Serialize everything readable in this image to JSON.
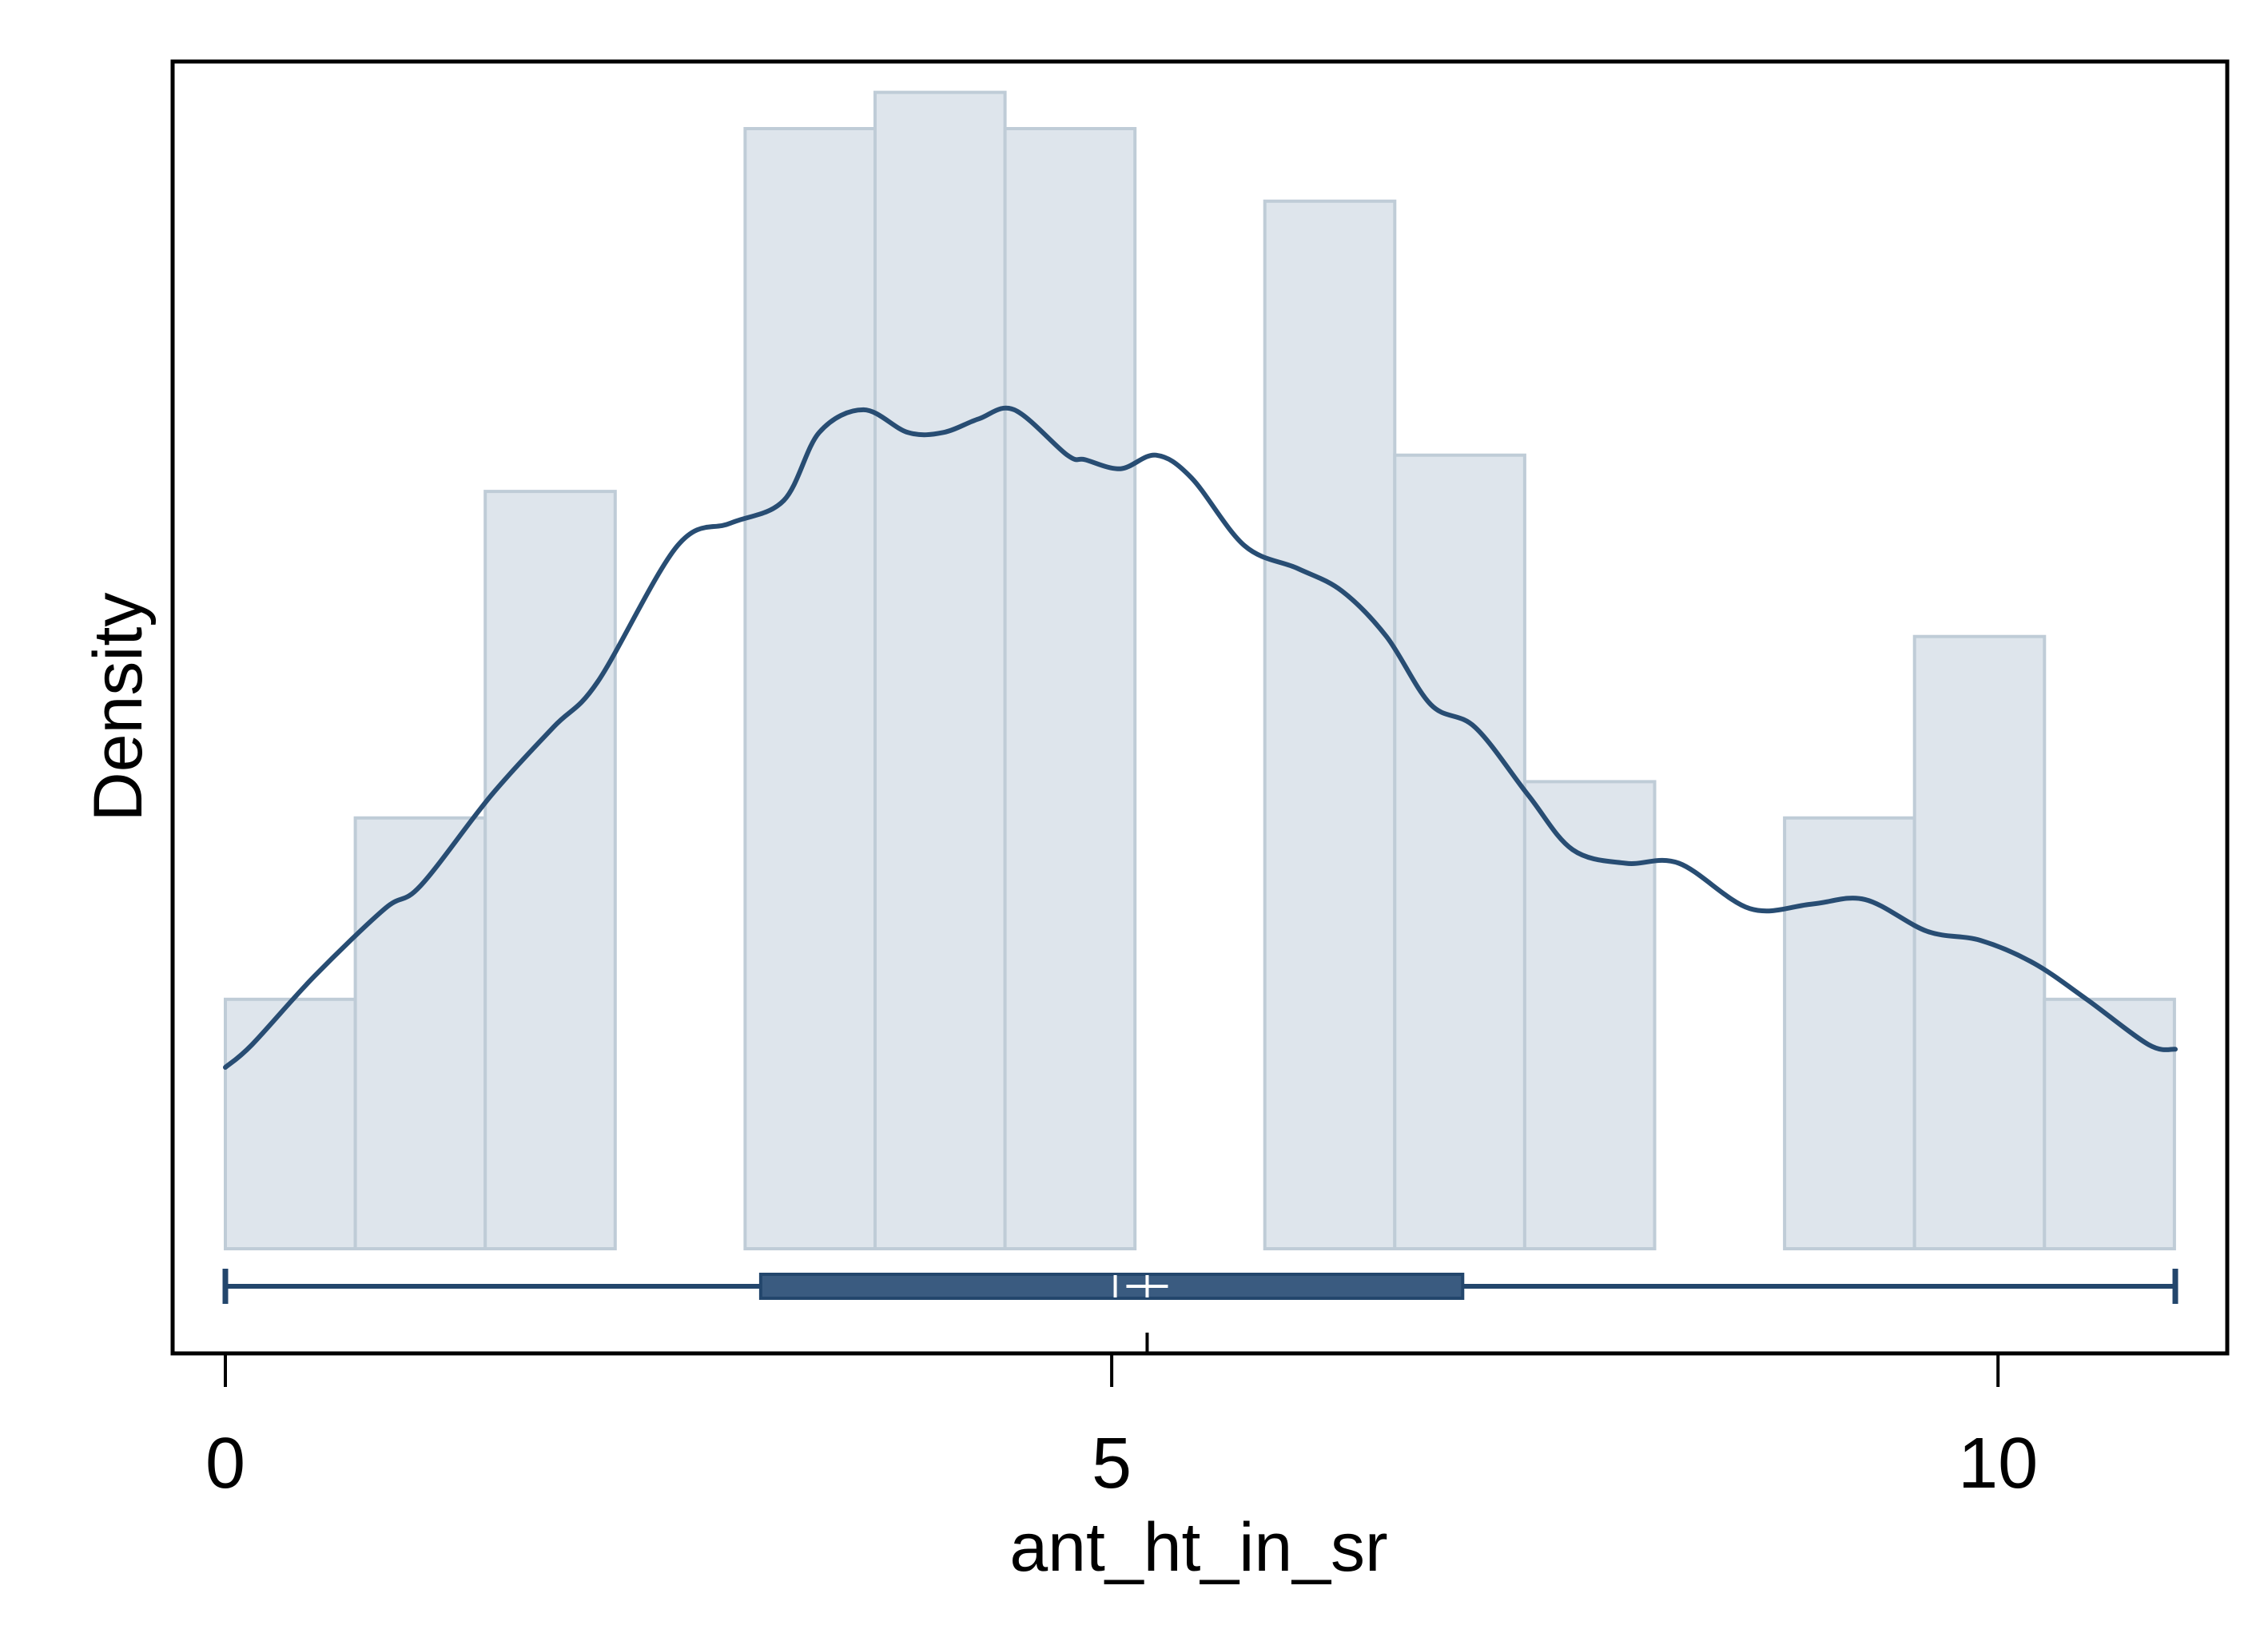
{
  "colors": {
    "background": "#ffffff",
    "bar_fill": "#dee5ec",
    "bar_stroke": "#bfccd7",
    "line": "#284d73",
    "box_fill": "#3a5b80",
    "box_stroke": "#23466c",
    "median_mark": "#ffffff",
    "frame": "#000000"
  },
  "chart_data": {
    "type": "bar",
    "subtype": "histogram with kernel density overlay and horizontal box plot",
    "xlabel": "ant_ht_in_sr",
    "ylabel": "Density",
    "xlim": [
      -0.3,
      11.3
    ],
    "ylim": [
      -0.025,
      0.265
    ],
    "x_ticks": [
      0,
      5,
      10
    ],
    "x_tick_labels": [
      "0",
      "5",
      "10"
    ],
    "y_ticks": [],
    "grid": false,
    "legend": "none",
    "histogram": {
      "bin_width": 0.733,
      "bin_start": 0,
      "densities": [
        0.055,
        0.095,
        0.167,
        0,
        0.247,
        0.255,
        0.247,
        0,
        0.231,
        0.175,
        0.103,
        0,
        0.095,
        0.135,
        0.055
      ]
    },
    "kde_line": {
      "x": [
        0.0,
        0.15,
        0.5,
        0.9,
        1.1,
        1.5,
        1.85,
        2.1,
        2.55,
        2.85,
        3.15,
        3.35,
        3.6,
        3.85,
        4.05,
        4.25,
        4.45,
        4.75,
        4.85,
        5.05,
        5.25,
        5.45,
        5.75,
        6.05,
        6.3,
        6.55,
        6.8,
        7.05,
        7.35,
        7.6,
        7.9,
        8.2,
        8.6,
        8.95,
        9.25,
        9.6,
        9.9,
        10.2,
        10.5,
        10.85,
        11.0
      ],
      "y": [
        0.04,
        0.045,
        0.06,
        0.075,
        0.08,
        0.1,
        0.115,
        0.125,
        0.155,
        0.16,
        0.165,
        0.18,
        0.185,
        0.18,
        0.18,
        0.183,
        0.185,
        0.175,
        0.174,
        0.172,
        0.175,
        0.17,
        0.155,
        0.15,
        0.145,
        0.135,
        0.12,
        0.115,
        0.1,
        0.088,
        0.085,
        0.085,
        0.075,
        0.076,
        0.077,
        0.07,
        0.068,
        0.063,
        0.055,
        0.045,
        0.044
      ]
    },
    "boxplot": {
      "min": 0.0,
      "q1": 3.02,
      "median": 5.02,
      "mean": 5.2,
      "q3": 6.98,
      "max": 11.0
    }
  }
}
